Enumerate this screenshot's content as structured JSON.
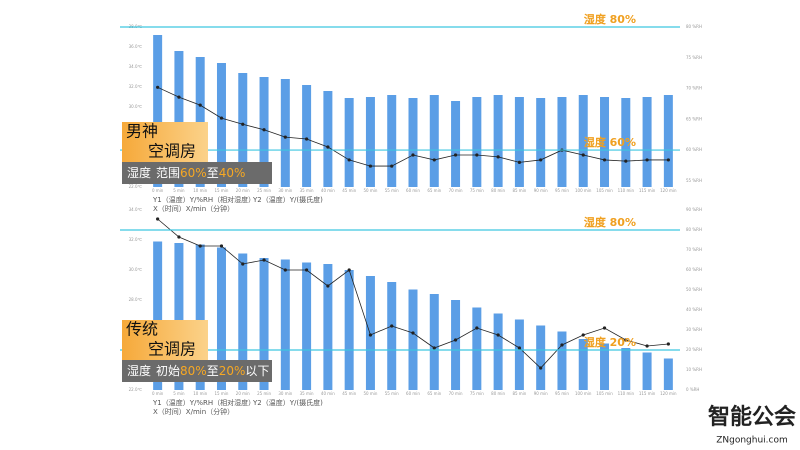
{
  "chart_data": [
    {
      "type": "bar",
      "categories": [
        "0 min",
        "5 min",
        "10 min",
        "15 min",
        "20 min",
        "25 min",
        "30 min",
        "35 min",
        "40 min",
        "45 min",
        "50 min",
        "55 min",
        "60 min",
        "65 min",
        "70 min",
        "75 min",
        "80 min",
        "85 min",
        "90 min",
        "95 min",
        "100 min",
        "105 min",
        "110 min",
        "115 min",
        "120 min"
      ],
      "series": [
        {
          "type": "bar",
          "color": "#5b9ee6",
          "values": [
            37.2,
            35.6,
            35.0,
            34.4,
            33.4,
            33.0,
            32.8,
            32.2,
            31.6,
            30.9,
            31.0,
            31.2,
            30.9,
            31.2,
            30.6,
            31.0,
            31.2,
            31.0,
            30.9,
            31.0,
            31.2,
            31.0,
            30.9,
            31.0,
            31.2
          ]
        },
        {
          "type": "line",
          "axis": "y2",
          "color": "#222222",
          "values": [
            70.2,
            68.6,
            67.3,
            65.2,
            64.2,
            63.3,
            62.1,
            61.8,
            60.5,
            58.4,
            57.4,
            57.4,
            59.2,
            58.4,
            59.2,
            59.2,
            58.9,
            58.0,
            58.4,
            60.0,
            59.2,
            58.4,
            58.2,
            58.4,
            58.4
          ]
        }
      ],
      "ylim": [
        22,
        38
      ],
      "yticks": [
        {
          "value": 22,
          "label": "22.0℃"
        },
        {
          "value": 24,
          "label": "24.0℃"
        },
        {
          "value": 26,
          "label": "26.0℃"
        },
        {
          "value": 28,
          "label": "28.0℃"
        },
        {
          "value": 30,
          "label": "30.0℃"
        },
        {
          "value": 32,
          "label": "32.0℃"
        },
        {
          "value": 34,
          "label": "34.0℃"
        },
        {
          "value": 36,
          "label": "36.0℃"
        },
        {
          "value": 38,
          "label": "38.0℃"
        }
      ],
      "y2lim": [
        54,
        80
      ],
      "y2ticks": [
        {
          "value": 55,
          "label": "55 %RH"
        },
        {
          "value": 60,
          "label": "60 %RH"
        },
        {
          "value": 65,
          "label": "65 %RH"
        },
        {
          "value": 70,
          "label": "70 %RH"
        },
        {
          "value": 75,
          "label": "75 %RH"
        },
        {
          "value": 80,
          "label": "80 %RH"
        }
      ],
      "annotations": [
        {
          "text": "湿度 80%",
          "value": 80
        },
        {
          "text": "湿度 60%",
          "value": 60
        }
      ],
      "overlay": {
        "title": [
          "男神",
          "空调房"
        ],
        "note": [
          "湿度",
          "范围",
          "60%",
          "至",
          "40%"
        ]
      },
      "axis_note": [
        "Y1（温度）Y/%RH（相对湿度）",
        "Y2（温度）Y/(摄氏度)",
        "X（时间）X/min（分钟）"
      ]
    },
    {
      "type": "bar",
      "categories": [
        "0 min",
        "5 min",
        "10 min",
        "15 min",
        "20 min",
        "25 min",
        "30 min",
        "35 min",
        "40 min",
        "45 min",
        "50 min",
        "55 min",
        "60 min",
        "65 min",
        "70 min",
        "75 min",
        "80 min",
        "85 min",
        "90 min",
        "95 min",
        "100 min",
        "105 min",
        "110 min",
        "115 min",
        "120 min"
      ],
      "series": [
        {
          "type": "bar",
          "color": "#5b9ee6",
          "values": [
            31.9,
            31.8,
            31.7,
            31.5,
            31.1,
            30.8,
            30.7,
            30.5,
            30.4,
            30.0,
            29.6,
            29.2,
            28.7,
            28.4,
            28.0,
            27.5,
            27.1,
            26.7,
            26.3,
            25.9,
            25.4,
            25.1,
            24.8,
            24.5,
            24.1
          ]
        },
        {
          "type": "line",
          "axis": "y2",
          "color": "#222222",
          "values": [
            85.5,
            76.5,
            72,
            72,
            63,
            65,
            60,
            60,
            52,
            60,
            27.5,
            32,
            28.5,
            21,
            25,
            31,
            27.5,
            21,
            11,
            22.5,
            27.5,
            31,
            25,
            22,
            23
          ]
        }
      ],
      "ylim": [
        22,
        34
      ],
      "yticks": [
        {
          "value": 22,
          "label": "22.0℃"
        },
        {
          "value": 24,
          "label": "24.0℃"
        },
        {
          "value": 26,
          "label": "26.0℃"
        },
        {
          "value": 28,
          "label": "28.0℃"
        },
        {
          "value": 30,
          "label": "30.0℃"
        },
        {
          "value": 32,
          "label": "32.0℃"
        },
        {
          "value": 34,
          "label": "34.0℃"
        }
      ],
      "y2lim": [
        0,
        90
      ],
      "y2ticks": [
        {
          "value": 0,
          "label": "0 %RH"
        },
        {
          "value": 10,
          "label": "10 %RH"
        },
        {
          "value": 20,
          "label": "20 %RH"
        },
        {
          "value": 30,
          "label": "30 %RH"
        },
        {
          "value": 40,
          "label": "40 %RH"
        },
        {
          "value": 50,
          "label": "50 %RH"
        },
        {
          "value": 60,
          "label": "60 %RH"
        },
        {
          "value": 70,
          "label": "70 %RH"
        },
        {
          "value": 80,
          "label": "80 %RH"
        },
        {
          "value": 90,
          "label": "90 %RH"
        }
      ],
      "annotations": [
        {
          "text": "湿度 80%",
          "value": 80
        },
        {
          "text": "湿度 20%",
          "value": 20
        }
      ],
      "overlay": {
        "title": [
          "传统",
          "空调房"
        ],
        "note": [
          "湿度",
          "初始",
          "80%",
          "至",
          "20%",
          "以下"
        ]
      },
      "axis_note": [
        "Y1（温度）Y/%RH（相对湿度）",
        "Y2（温度）Y/(摄氏度)",
        "X（时间）X/min（分钟）"
      ]
    }
  ],
  "logo": {
    "name": "智能公会",
    "url": "ZNgonghui.com"
  }
}
